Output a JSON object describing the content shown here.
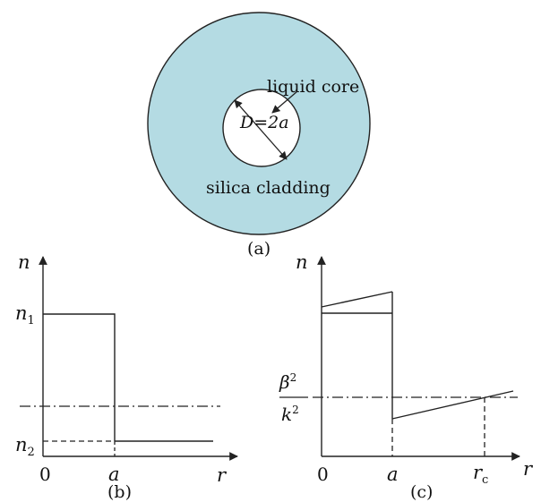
{
  "colors": {
    "cladding_fill": "#b4dbe3",
    "core_fill": "#ffffff",
    "line": "#222222"
  },
  "panel_a": {
    "caption": "(a)",
    "core_label": "liquid core",
    "cladding_label": "silica cladding",
    "diameter_label": "D=2a"
  },
  "panel_b": {
    "caption": "(b)",
    "y_axis_label": "n",
    "x_axis_label": "r",
    "origin_label": "0",
    "tick_a_label": "a",
    "n1_base": "n",
    "n1_sub": "1",
    "n2_base": "n",
    "n2_sub": "2"
  },
  "panel_c": {
    "caption": "(c)",
    "y_axis_label": "n",
    "x_axis_label": "r",
    "origin_label": "0",
    "tick_a_label": "a",
    "rc_base": "r",
    "rc_sub": "c",
    "beta_label": "β",
    "beta_exp": "2",
    "k_label": "k",
    "k_exp": "2"
  }
}
